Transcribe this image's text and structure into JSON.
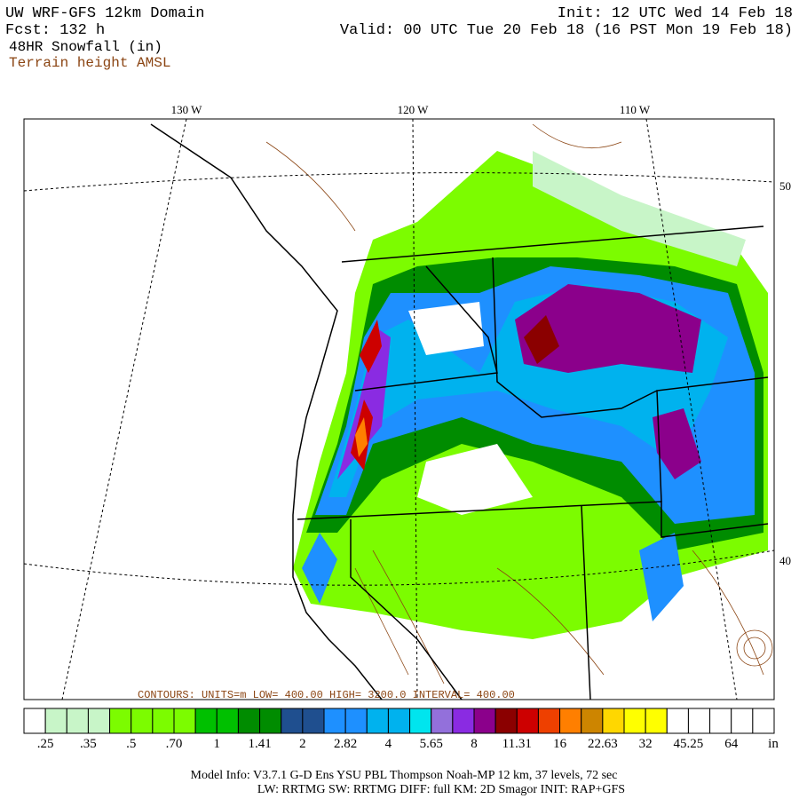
{
  "header": {
    "left": [
      "UW WRF-GFS 12km Domain",
      "Fcst:  132 h",
      "48HR Snowfall (in)",
      "Terrain height AMSL"
    ],
    "right": [
      "Init: 12 UTC Wed 14 Feb 18",
      "Valid: 00 UTC Tue 20 Feb 18 (16 PST Mon 19 Feb 18)"
    ]
  },
  "map": {
    "longitudes": [
      "130 W",
      "120 W",
      "110 W"
    ],
    "latitudes": [
      "50",
      "40"
    ],
    "contours": "CONTOURS: UNITS=m  LOW=  400.00  HIGH=  3200.0  INTERVAL=  400.00"
  },
  "colorbar": {
    "colors": [
      "#ffffff",
      "#c8f5c8",
      "#c8f5c8",
      "#c8f5c8",
      "#7cfc00",
      "#7cfc00",
      "#7cfc00",
      "#7cfc00",
      "#00c000",
      "#00c000",
      "#008c00",
      "#008c00",
      "#1f4f8f",
      "#1f4f8f",
      "#1e90ff",
      "#1e90ff",
      "#00b2ee",
      "#00b2ee",
      "#00e5ee",
      "#9370db",
      "#8a2be2",
      "#8b008b",
      "#8b0000",
      "#cd0000",
      "#ee4000",
      "#ff7f00",
      "#cd8500",
      "#ffd700",
      "#ffff00",
      "#ffff00",
      "#ffffff",
      "#ffffff",
      "#ffffff",
      "#ffffff",
      "#ffffff"
    ],
    "labels": [
      ".25",
      ".35",
      ".5",
      ".70",
      "1",
      "1.41",
      "2",
      "2.82",
      "4",
      "5.65",
      "8",
      "11.31",
      "16",
      "22.63",
      "32",
      "45.25",
      "64"
    ],
    "unit": "in"
  },
  "footer": [
    "Model Info: V3.7.1    G-D Ens YSU PBL   Thompson      Noah-MP    12 km,    37 levels,    72 sec",
    "LW: RRTMG SW: RRTMG    DIFF: full    KM: 2D Smagor INIT: RAP+GFS"
  ]
}
